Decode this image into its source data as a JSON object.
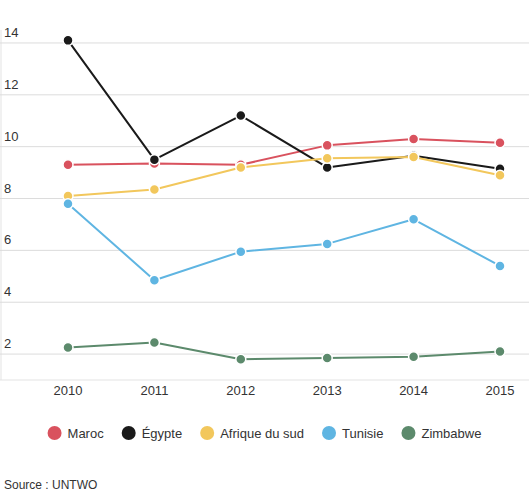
{
  "chart_data": {
    "type": "line",
    "categories": [
      "2010",
      "2011",
      "2012",
      "2013",
      "2014",
      "2015"
    ],
    "series": [
      {
        "name": "Maroc",
        "color": "#d9525e",
        "values": [
          9.3,
          9.35,
          9.3,
          10.05,
          10.3,
          10.15
        ]
      },
      {
        "name": "Égypte",
        "color": "#1a1a1a",
        "values": [
          14.1,
          9.5,
          11.2,
          9.2,
          9.65,
          9.15
        ]
      },
      {
        "name": "Afrique du sud",
        "color": "#f2c75c",
        "values": [
          8.1,
          8.35,
          9.2,
          9.55,
          9.6,
          8.9
        ]
      },
      {
        "name": "Tunisie",
        "color": "#5fb5e2",
        "values": [
          7.8,
          4.85,
          5.95,
          6.25,
          7.2,
          5.4
        ]
      },
      {
        "name": "Zimbabwe",
        "color": "#5c8a6c",
        "values": [
          2.25,
          2.45,
          1.8,
          1.85,
          1.9,
          2.1
        ]
      }
    ],
    "ylim": [
      1,
      14.5
    ],
    "yticks": [
      2,
      4,
      6,
      8,
      10,
      12,
      14
    ],
    "grid": true,
    "marker": "circle",
    "legend": "bottom",
    "source": "Source : UNTWO"
  }
}
